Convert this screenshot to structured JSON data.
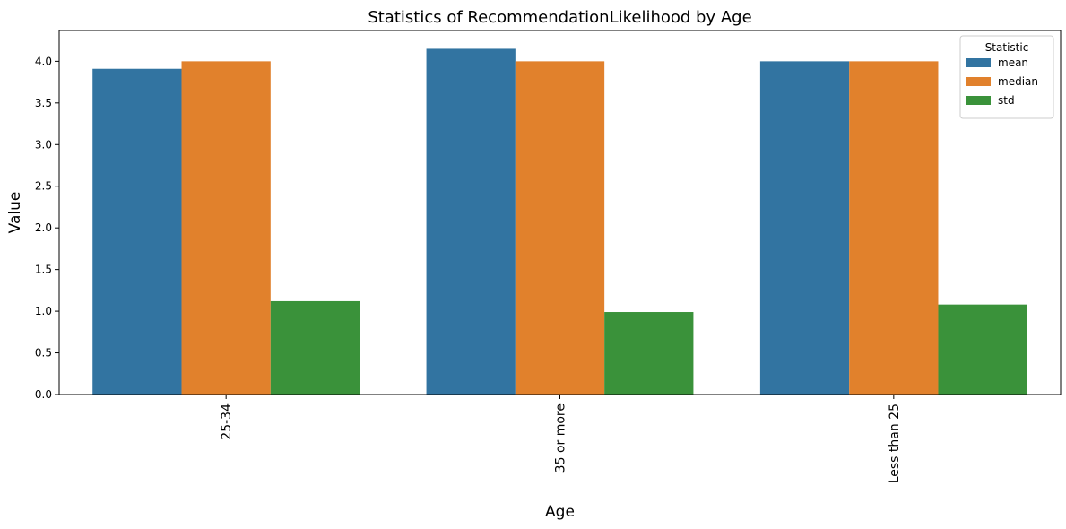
{
  "chart_data": {
    "type": "bar",
    "title": "Statistics of RecommendationLikelihood by Age",
    "xlabel": "Age",
    "ylabel": "Value",
    "categories": [
      "25-34",
      "35 or more",
      "Less than 25"
    ],
    "series": [
      {
        "name": "mean",
        "color": "#3274a1",
        "values": [
          3.91,
          4.15,
          4.0
        ]
      },
      {
        "name": "median",
        "color": "#e1812c",
        "values": [
          4.0,
          4.0,
          4.0
        ]
      },
      {
        "name": "std",
        "color": "#3a923a",
        "values": [
          1.12,
          0.99,
          1.08
        ]
      }
    ],
    "ylim": [
      0,
      4.37
    ],
    "yticks": [
      0.0,
      0.5,
      1.0,
      1.5,
      2.0,
      2.5,
      3.0,
      3.5,
      4.0
    ],
    "ytick_labels": [
      "0.0",
      "0.5",
      "1.0",
      "1.5",
      "2.0",
      "2.5",
      "3.0",
      "3.5",
      "4.0"
    ],
    "legend": {
      "title": "Statistic",
      "placement": "top-right"
    },
    "grid": false
  }
}
